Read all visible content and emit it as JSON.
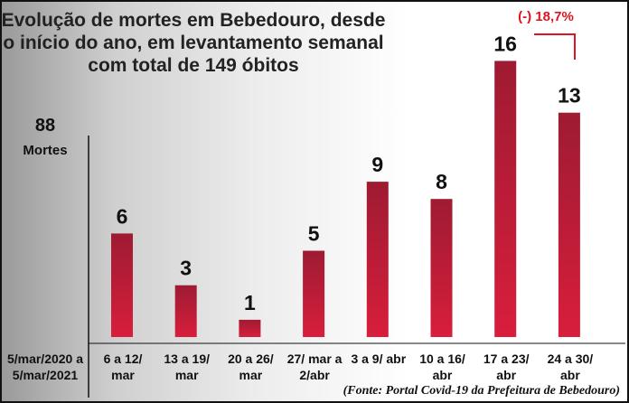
{
  "chart_data": {
    "type": "bar",
    "title_lines": [
      "Evolução de mortes em Bebedouro, desde",
      "o início do ano, em levantamento semanal",
      "com total de 149 óbitos"
    ],
    "ylabel_value": "88",
    "ylabel_text": "Mortes",
    "period_label_lines": [
      "5/mar/2020 a",
      "5/mar/2021"
    ],
    "categories": [
      [
        "6 a 12/",
        "mar"
      ],
      [
        "13 a 19/",
        "mar"
      ],
      [
        "20 a 26/",
        "mar"
      ],
      [
        "27/ mar a",
        "2/abr"
      ],
      [
        "3 a 9/ abr"
      ],
      [
        "10 a 16/",
        "abr"
      ],
      [
        "17 a 23/",
        "abr"
      ],
      [
        "24 a 30/",
        "abr"
      ]
    ],
    "values": [
      6,
      3,
      1,
      5,
      9,
      8,
      16,
      13
    ],
    "ylim": [
      0,
      16
    ],
    "annotation": "(-) 18,7%",
    "source": "(Fonte: Portal Covid-19 da Prefeitura de Bebedouro)",
    "colors": {
      "bar_top": "#9e1b32",
      "bar_bottom": "#d81e3c",
      "annotation": "#e0141e"
    }
  }
}
